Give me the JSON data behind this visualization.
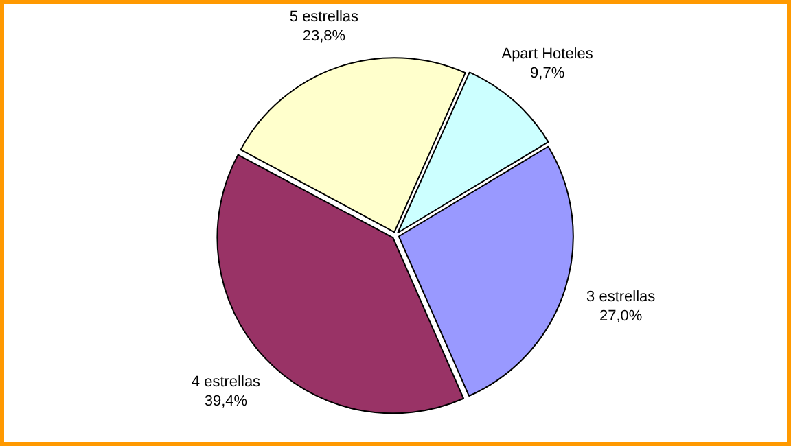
{
  "chart_data": {
    "type": "pie",
    "categories": [
      "Apart Hoteles",
      "3 estrellas",
      "4 estrellas",
      "5 estrellas"
    ],
    "values": [
      9.7,
      27.0,
      39.4,
      23.8
    ],
    "colors": [
      "#ccffff",
      "#9999ff",
      "#993366",
      "#ffffcc"
    ],
    "value_labels": [
      "9,7%",
      "27,0%",
      "39,4%",
      "23,8%"
    ],
    "legend": false
  }
}
